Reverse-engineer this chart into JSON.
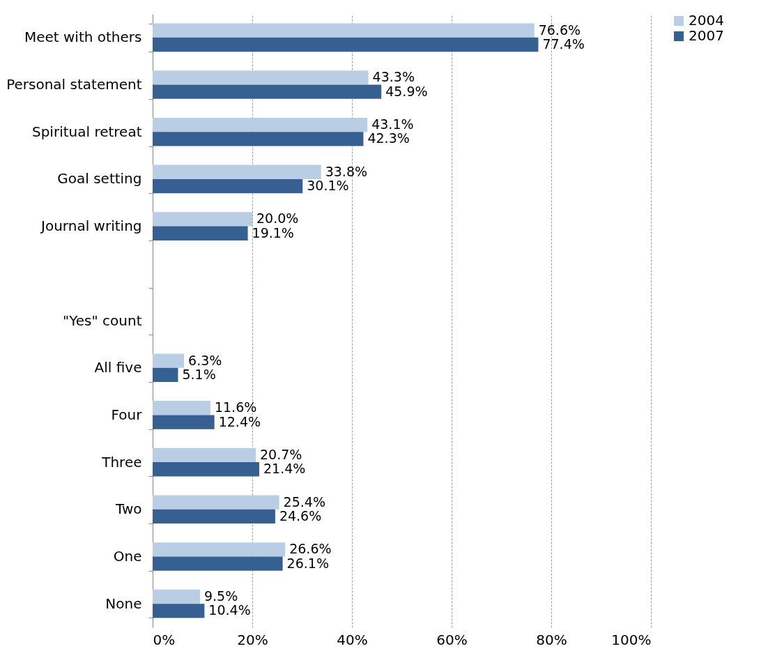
{
  "chart_data": {
    "type": "bar",
    "orientation": "horizontal",
    "categories": [
      "Meet with others",
      "Personal statement",
      "Spiritual retreat",
      "Goal setting",
      "Journal writing",
      null,
      "\"Yes\" count",
      "All five",
      "Four",
      "Three",
      "Two",
      "One",
      "None"
    ],
    "series": [
      {
        "name": "2004",
        "color": "#b9cde5",
        "values": [
          76.6,
          43.3,
          43.1,
          33.8,
          20.0,
          null,
          null,
          6.3,
          11.6,
          20.7,
          25.4,
          26.6,
          9.5
        ],
        "value_labels": [
          "76.6%",
          "43.3%",
          "43.1%",
          "33.8%",
          "20.0%",
          null,
          null,
          "6.3%",
          "11.6%",
          "20.7%",
          "25.4%",
          "26.6%",
          "9.5%"
        ]
      },
      {
        "name": "2007",
        "color": "#376092",
        "values": [
          77.4,
          45.9,
          42.3,
          30.1,
          19.1,
          null,
          null,
          5.1,
          12.4,
          21.4,
          24.6,
          26.1,
          10.4
        ],
        "value_labels": [
          "77.4%",
          "45.9%",
          "42.3%",
          "30.1%",
          "19.1%",
          null,
          null,
          "5.1%",
          "12.4%",
          "21.4%",
          "24.6%",
          "26.1%",
          "10.4%"
        ]
      }
    ],
    "xlim": [
      0,
      100
    ],
    "xticks": [
      {
        "value": 0,
        "label": "0%"
      },
      {
        "value": 20,
        "label": "20%"
      },
      {
        "value": 40,
        "label": "40%"
      },
      {
        "value": 60,
        "label": "60%"
      },
      {
        "value": 80,
        "label": "80%"
      },
      {
        "value": 100,
        "label": "100%"
      }
    ],
    "grid": "x",
    "legend": "right"
  }
}
